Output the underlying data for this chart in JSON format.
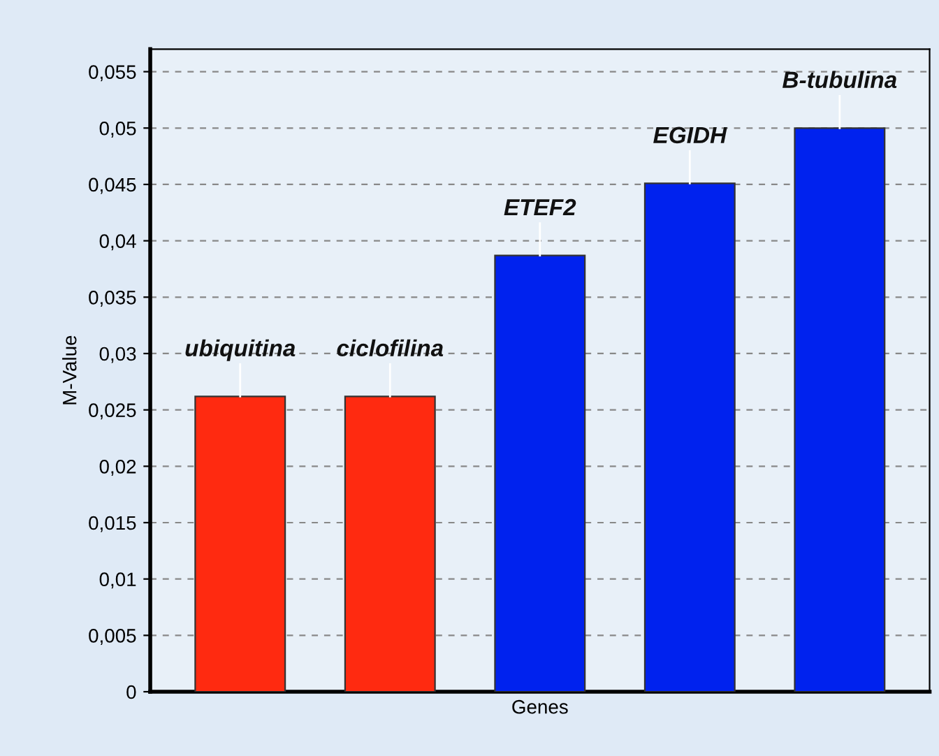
{
  "chart_data": {
    "type": "bar",
    "xlabel": "Genes",
    "ylabel": "M-Value",
    "categories": [
      "ubiquitina",
      "ciclofilina",
      "ETEF2",
      "EGIDH",
      "B-tubulina"
    ],
    "values": [
      0.0262,
      0.0262,
      0.0387,
      0.0451,
      0.05
    ],
    "colors": [
      "#ff2a10",
      "#ff2a10",
      "#0022ee",
      "#0022ee",
      "#0022ee"
    ],
    "ylim": [
      0,
      0.057
    ],
    "yticks": [
      {
        "value": 0,
        "label": "0"
      },
      {
        "value": 0.005,
        "label": "0,005"
      },
      {
        "value": 0.01,
        "label": "0,01"
      },
      {
        "value": 0.015,
        "label": "0,015"
      },
      {
        "value": 0.02,
        "label": "0,02"
      },
      {
        "value": 0.025,
        "label": "0,025"
      },
      {
        "value": 0.03,
        "label": "0,03"
      },
      {
        "value": 0.035,
        "label": "0,035"
      },
      {
        "value": 0.04,
        "label": "0,04"
      },
      {
        "value": 0.045,
        "label": "0,045"
      },
      {
        "value": 0.05,
        "label": "0,05"
      },
      {
        "value": 0.055,
        "label": "0,055"
      }
    ],
    "grid": "y"
  }
}
